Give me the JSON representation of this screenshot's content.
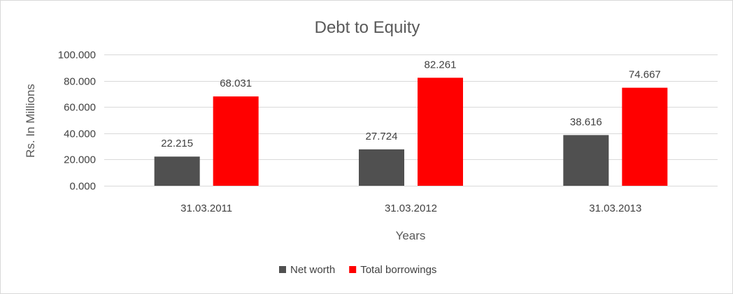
{
  "chart_data": {
    "type": "bar",
    "title": "Debt to Equity",
    "xlabel": "Years",
    "ylabel": "Rs. In Millions",
    "categories": [
      "31.03.2011",
      "31.03.2012",
      "31.03.2013"
    ],
    "series": [
      {
        "name": "Net worth",
        "color": "#505050",
        "values": [
          22.215,
          27.724,
          38.616
        ],
        "labels": [
          "22.215",
          "27.724",
          "38.616"
        ]
      },
      {
        "name": "Total borrowings",
        "color": "#ff0000",
        "values": [
          68.031,
          82.261,
          74.667
        ],
        "labels": [
          "68.031",
          "82.261",
          "74.667"
        ]
      }
    ],
    "ylim": [
      0,
      100
    ],
    "yticks": [
      0,
      20,
      40,
      60,
      80,
      100
    ],
    "ytick_labels": [
      "0.000",
      "20.000",
      "40.000",
      "60.000",
      "80.000",
      "100.000"
    ],
    "grid": true,
    "legend_position": "bottom"
  }
}
